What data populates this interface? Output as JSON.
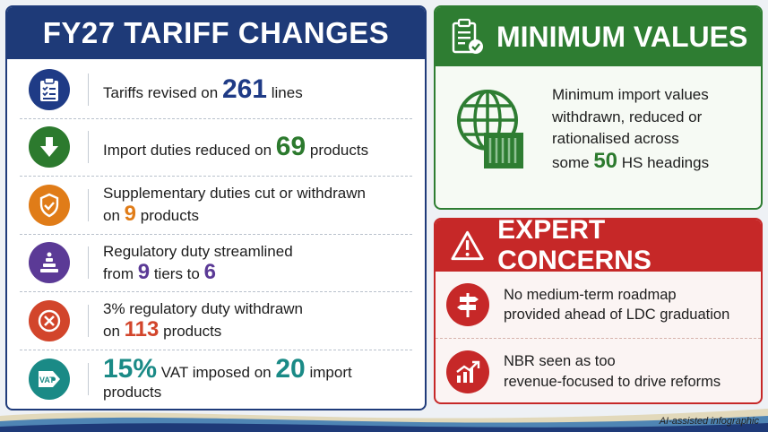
{
  "left_panel": {
    "title": "FY27 TARIFF CHANGES",
    "rows": [
      {
        "icon": "clipboard-checklist-icon",
        "color": "#1f3b86",
        "pre": "Tariffs revised on",
        "num": "261",
        "post": "lines"
      },
      {
        "icon": "arrow-down-icon",
        "color": "#2c7a2e",
        "pre": "Import duties reduced on",
        "num": "69",
        "post": "products"
      },
      {
        "icon": "shield-check-icon",
        "color": "#e07c18",
        "line1": "Supplementary duties cut or withdrawn",
        "pre": "on",
        "num": "9",
        "post": "products"
      },
      {
        "icon": "tiered-pyramid-icon",
        "color": "#5b3a96",
        "line1": "Regulatory duty streamlined",
        "pre": "from",
        "num": "9",
        "mid": "tiers to",
        "num2": "6"
      },
      {
        "icon": "cross-circle-icon",
        "color": "#d2452b",
        "line1": "3% regulatory duty withdrawn",
        "pre": "on",
        "num": "113",
        "post": "products"
      },
      {
        "icon": "vat-tag-icon",
        "color": "#1a8a86",
        "num": "15%",
        "mid": "VAT imposed on",
        "num2": "20",
        "post": "import products"
      }
    ]
  },
  "minimum_values": {
    "title": "MINIMUM VALUES",
    "icon": "document-check-icon",
    "body_icon": "globe-container-icon",
    "lines": [
      "Minimum import values",
      "withdrawn, reduced or",
      "rationalised across"
    ],
    "last_pre": "some",
    "last_num": "50",
    "last_post": "HS headings",
    "color": "#2e7d32"
  },
  "expert_concerns": {
    "title": "EXPERT CONCERNS",
    "icon": "warning-triangle-icon",
    "color": "#c62828",
    "items": [
      {
        "icon": "signpost-icon",
        "line1": "No medium-term roadmap",
        "line2": "provided ahead of LDC graduation"
      },
      {
        "icon": "chart-up-icon",
        "line1": "NBR seen as too",
        "line2": "revenue-focused to drive reforms"
      }
    ]
  },
  "footer": "AI-assisted infographic"
}
